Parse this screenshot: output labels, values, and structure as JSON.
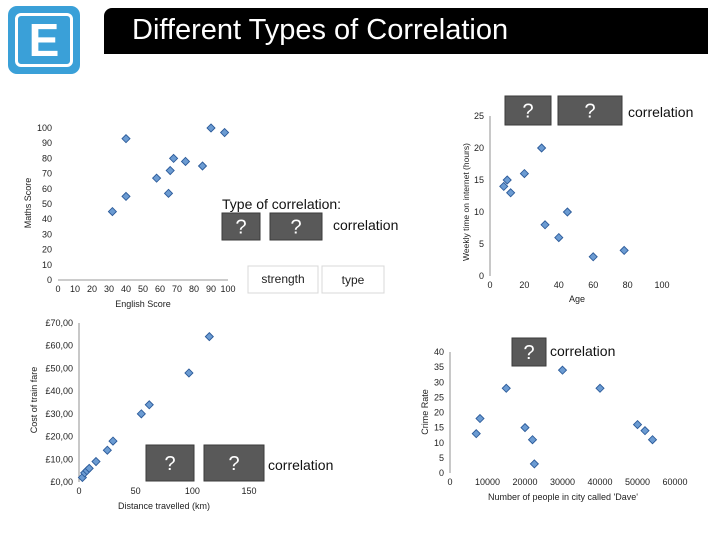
{
  "slide": {
    "title": "Different Types of Correlation",
    "logo_letter": "E",
    "accent_color": "#3aa0d8"
  },
  "chart_data": [
    {
      "type": "scatter",
      "id": "tl",
      "title": "",
      "xlabel": "English Score",
      "ylabel": "Maths Score",
      "xlim": [
        0,
        100
      ],
      "ylim": [
        0,
        100
      ],
      "xticks": [
        "0",
        "10",
        "20",
        "30",
        "40",
        "50",
        "60",
        "70",
        "80",
        "90",
        "100"
      ],
      "yticks": [
        "0",
        "10",
        "20",
        "30",
        "40",
        "50",
        "60",
        "70",
        "80",
        "90",
        "100"
      ],
      "points": [
        [
          32,
          45
        ],
        [
          40,
          55
        ],
        [
          40,
          93
        ],
        [
          58,
          67
        ],
        [
          65,
          57
        ],
        [
          66,
          72
        ],
        [
          68,
          80
        ],
        [
          75,
          78
        ],
        [
          85,
          75
        ],
        [
          90,
          100
        ],
        [
          98,
          97
        ]
      ],
      "question_marks": [
        "?",
        "?"
      ],
      "caption_prefix": "Type of correlation:",
      "caption_suffix": "correlation",
      "tags": {
        "strength": "strength",
        "type": "type"
      }
    },
    {
      "type": "scatter",
      "id": "tr",
      "xlabel": "Age",
      "ylabel": "Weekly time on internet (hours)",
      "xlim": [
        0,
        100
      ],
      "ylim": [
        0,
        25
      ],
      "xticks": [
        "0",
        "20",
        "40",
        "60",
        "80",
        "100"
      ],
      "yticks": [
        "0",
        "5",
        "10",
        "15",
        "20",
        "25"
      ],
      "points": [
        [
          8,
          14
        ],
        [
          10,
          15
        ],
        [
          12,
          13
        ],
        [
          20,
          16
        ],
        [
          30,
          20
        ],
        [
          32,
          8
        ],
        [
          40,
          6
        ],
        [
          45,
          10
        ],
        [
          60,
          3
        ],
        [
          78,
          4
        ]
      ],
      "question_marks": [
        "?",
        "?"
      ],
      "caption_suffix": "correlation"
    },
    {
      "type": "scatter",
      "id": "bl",
      "xlabel": "Distance travelled (km)",
      "ylabel": "Cost of train fare",
      "xlim": [
        0,
        150
      ],
      "ylim": [
        0,
        70
      ],
      "xticks": [
        "0",
        "50",
        "100",
        "150"
      ],
      "yticks": [
        "£0,00",
        "£10,00",
        "£20,00",
        "£30,00",
        "£40,00",
        "£50,00",
        "£60,00",
        "£70,00"
      ],
      "points": [
        [
          3,
          2
        ],
        [
          5,
          4
        ],
        [
          7,
          5
        ],
        [
          9,
          6
        ],
        [
          15,
          9
        ],
        [
          25,
          14
        ],
        [
          30,
          18
        ],
        [
          55,
          30
        ],
        [
          62,
          34
        ],
        [
          97,
          48
        ],
        [
          115,
          64
        ]
      ],
      "question_marks": [
        "?",
        "?"
      ],
      "caption_suffix": "correlation"
    },
    {
      "type": "scatter",
      "id": "br",
      "xlabel": "Number of people in city called 'Dave'",
      "ylabel": "Crime Rate",
      "xlim": [
        0,
        60000
      ],
      "ylim": [
        0,
        40
      ],
      "xticks": [
        "0",
        "10000",
        "20000",
        "30000",
        "40000",
        "50000",
        "60000"
      ],
      "yticks": [
        "0",
        "5",
        "10",
        "15",
        "20",
        "25",
        "30",
        "35",
        "40"
      ],
      "points": [
        [
          7000,
          13
        ],
        [
          8000,
          18
        ],
        [
          15000,
          28
        ],
        [
          20000,
          15
        ],
        [
          22000,
          11
        ],
        [
          22500,
          3
        ],
        [
          30000,
          34
        ],
        [
          40000,
          28
        ],
        [
          50000,
          16
        ],
        [
          52000,
          14
        ],
        [
          54000,
          11
        ]
      ],
      "question_marks": [
        "?"
      ],
      "caption_suffix": "correlation"
    }
  ]
}
